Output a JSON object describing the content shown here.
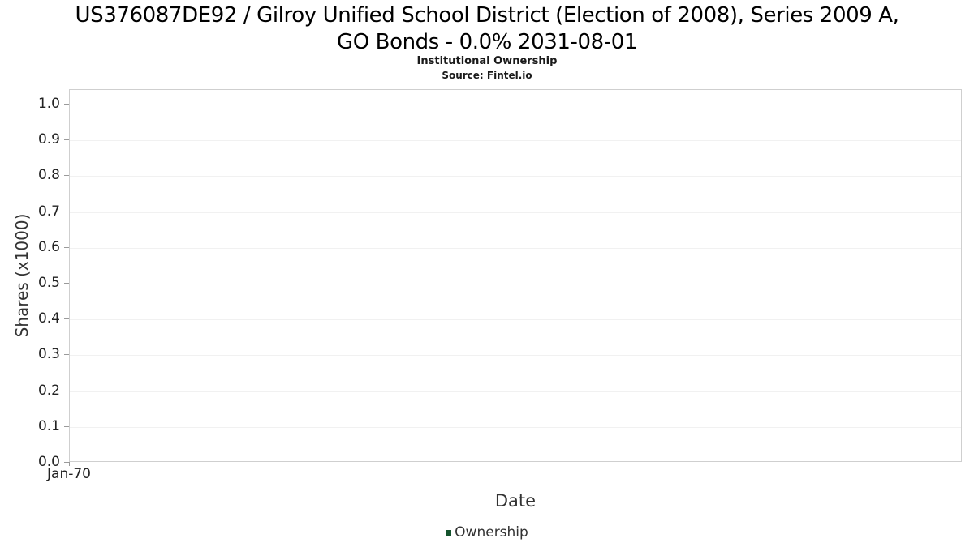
{
  "display": {
    "title_lines": [
      "US376087DE92 / Gilroy Unified School District (Election of 2008), Series 2009 A,",
      "GO Bonds - 0.0% 2031-08-01"
    ]
  },
  "chart_data": {
    "type": "line",
    "title": "US376087DE92 / Gilroy Unified School District (Election of 2008), Series 2009 A, GO Bonds - 0.0% 2031-08-01",
    "subtitle": "Institutional Ownership",
    "source": "Source: Fintel.io",
    "xlabel": "Date",
    "ylabel": "Shares (x1000)",
    "xticks": [
      "Jan-70"
    ],
    "yticks": [
      0.0,
      0.1,
      0.2,
      0.3,
      0.4,
      0.5,
      0.6,
      0.7,
      0.8,
      0.9,
      1.0
    ],
    "ylim": [
      0.0,
      1.0
    ],
    "grid": true,
    "legend_position": "bottom",
    "series": [
      {
        "name": "Ownership",
        "color": "#14532d",
        "x": [],
        "y": []
      }
    ]
  }
}
